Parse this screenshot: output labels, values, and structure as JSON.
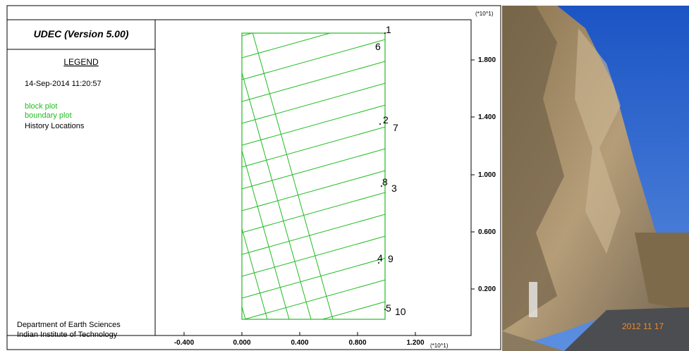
{
  "header": {
    "title": "UDEC (Version 5.00)"
  },
  "legend": {
    "title": "LEGEND",
    "timestamp": "14-Sep-2014  11:20:57",
    "items": [
      "block plot",
      "boundary plot",
      "History Locations"
    ]
  },
  "footer": [
    "Department of Earth Sciences",
    "Indian Institute of Technology"
  ],
  "plot": {
    "x_axis": {
      "ticks": [
        "-0.400",
        "0.000",
        "0.400",
        "0.800",
        "1.200"
      ],
      "multiplier": "(*10^1)"
    },
    "y_axis": {
      "ticks": [
        "0.200",
        "0.600",
        "1.000",
        "1.400",
        "1.800"
      ],
      "multiplier": "(*10^1)"
    },
    "history_labels": [
      "1",
      "6",
      "2",
      "7",
      "8",
      "3",
      "4",
      "9",
      "5",
      "10"
    ]
  },
  "photo": {
    "date_stamp": "2012 11 17"
  }
}
